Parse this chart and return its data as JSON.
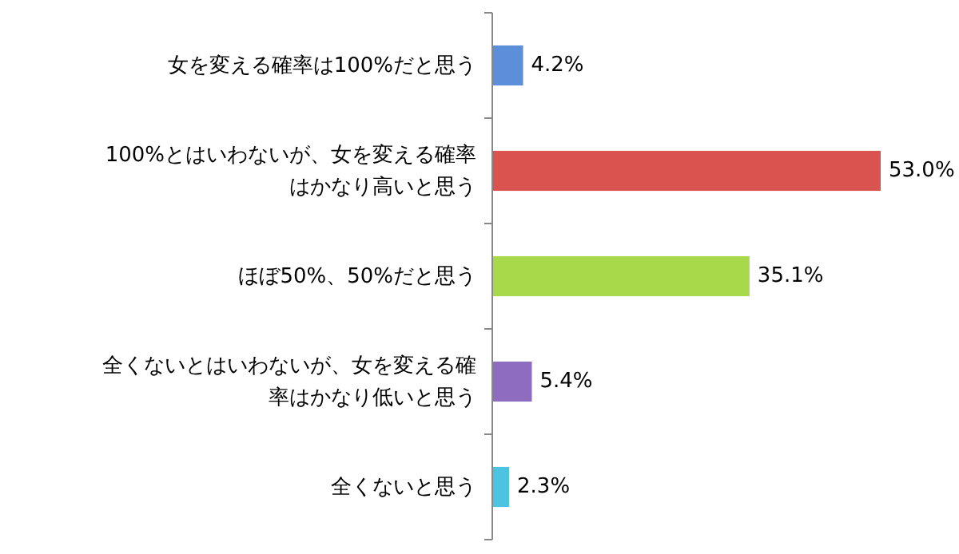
{
  "chart_data": {
    "type": "bar",
    "orientation": "horizontal",
    "categories": [
      "女を変える確率は100%だと思う",
      "100%とはいわないが、女を変える確率はかなり高いと思う",
      "ほぼ50%、50%だと思う",
      "全くないとはいわないが、女を変える確率はかなり低いと思う",
      "全くないと思う"
    ],
    "values": [
      4.2,
      53.0,
      35.1,
      5.4,
      2.3
    ],
    "colors": [
      "#5b8fd9",
      "#d9534f",
      "#a8d94a",
      "#8e6cc0",
      "#4cc3e0"
    ],
    "value_labels": [
      "4.2%",
      "53.0%",
      "35.1%",
      "5.4%",
      "2.3%"
    ]
  }
}
